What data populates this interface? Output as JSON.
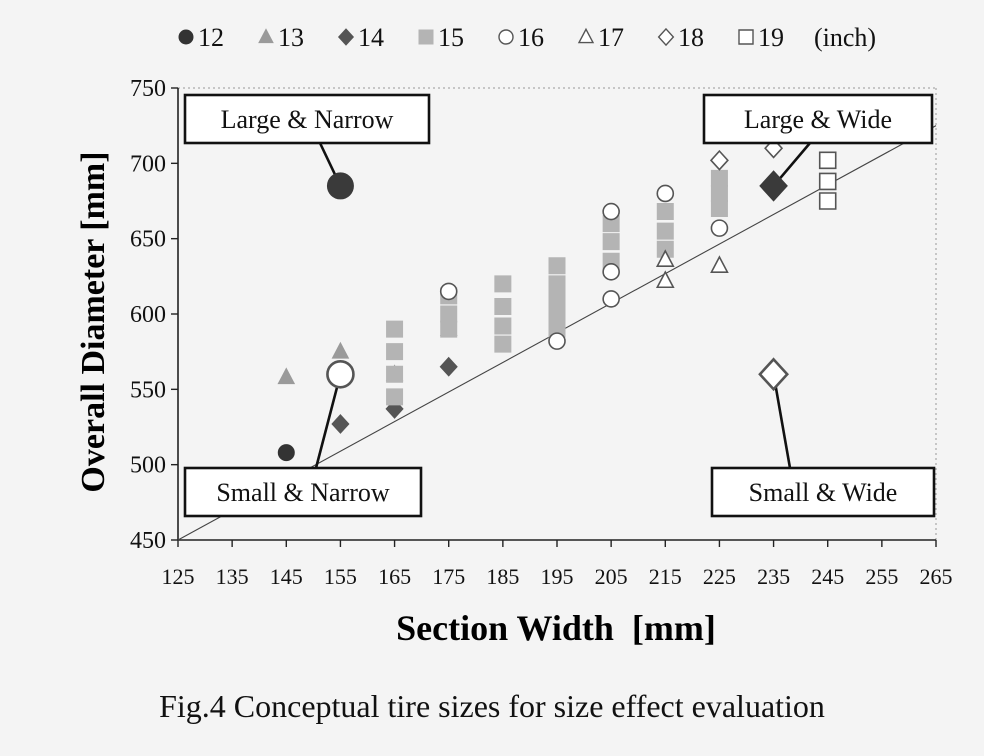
{
  "chart_data": {
    "type": "scatter",
    "xlabel": "Section Width  [mm]",
    "ylabel": "Overall Diameter  [mm]",
    "xlim": [
      125,
      265
    ],
    "ylim": [
      450,
      750
    ],
    "xticks": [
      125,
      135,
      145,
      155,
      165,
      175,
      185,
      195,
      205,
      215,
      225,
      235,
      245,
      255,
      265
    ],
    "yticks": [
      450,
      500,
      550,
      600,
      650,
      700,
      750
    ],
    "grid": false,
    "legend_position": "top",
    "legend_unit": "(inch)",
    "series": [
      {
        "name": "12",
        "marker": "circle-filled",
        "color": "#333333",
        "x": [
          145
        ],
        "y": [
          508
        ]
      },
      {
        "name": "13",
        "marker": "triangle-filled",
        "color": "#9a9a9a",
        "x": [
          145,
          155,
          165,
          175
        ],
        "y": [
          558,
          575,
          560,
          590
        ]
      },
      {
        "name": "14",
        "marker": "diamond-filled",
        "color": "#555555",
        "x": [
          155,
          165,
          175,
          235
        ],
        "y": [
          527,
          537,
          565,
          685
        ]
      },
      {
        "name": "15",
        "marker": "square-filled",
        "color": "#b4b4b4",
        "x": [
          165,
          165,
          165,
          165,
          175,
          175,
          175,
          185,
          185,
          185,
          185,
          195,
          195,
          195,
          195,
          195,
          205,
          205,
          205,
          215,
          215,
          215,
          225,
          225,
          225
        ],
        "y": [
          545,
          560,
          575,
          590,
          590,
          600,
          612,
          580,
          592,
          605,
          620,
          590,
          600,
          610,
          620,
          632,
          635,
          648,
          660,
          643,
          655,
          668,
          670,
          680,
          690
        ]
      },
      {
        "name": "16",
        "marker": "circle-open",
        "color": "#777777",
        "x": [
          175,
          195,
          205,
          205,
          205,
          215,
          225
        ],
        "y": [
          615,
          582,
          610,
          628,
          668,
          680,
          657
        ]
      },
      {
        "name": "17",
        "marker": "triangle-open",
        "color": "#777777",
        "x": [
          215,
          215,
          225
        ],
        "y": [
          622,
          636,
          632
        ]
      },
      {
        "name": "18",
        "marker": "diamond-open",
        "color": "#888888",
        "x": [
          225,
          235
        ],
        "y": [
          702,
          710
        ]
      },
      {
        "name": "19",
        "marker": "square-open",
        "color": "#888888",
        "x": [
          245,
          245,
          245
        ],
        "y": [
          675,
          688,
          702
        ]
      }
    ],
    "highlights": [
      {
        "x": 155,
        "y": 685,
        "marker": "circle-filled"
      },
      {
        "x": 155,
        "y": 560,
        "marker": "circle-open"
      },
      {
        "x": 235,
        "y": 685,
        "marker": "diamond-filled"
      },
      {
        "x": 235,
        "y": 560,
        "marker": "diamond-open"
      }
    ],
    "trendline": {
      "x": [
        125,
        265
      ],
      "y": [
        450,
        725
      ]
    },
    "annotations": [
      {
        "text": "Large & Narrow",
        "placement": "top-left",
        "points_to": [
          155,
          685
        ]
      },
      {
        "text": "Large & Wide",
        "placement": "top-right",
        "points_to": [
          235,
          685
        ]
      },
      {
        "text": "Small & Narrow",
        "placement": "bottom-left",
        "points_to": [
          155,
          560
        ]
      },
      {
        "text": "Small & Wide",
        "placement": "bottom-right",
        "points_to": [
          235,
          560
        ]
      }
    ]
  },
  "caption": "Fig.4 Conceptual tire sizes for size effect evaluation"
}
